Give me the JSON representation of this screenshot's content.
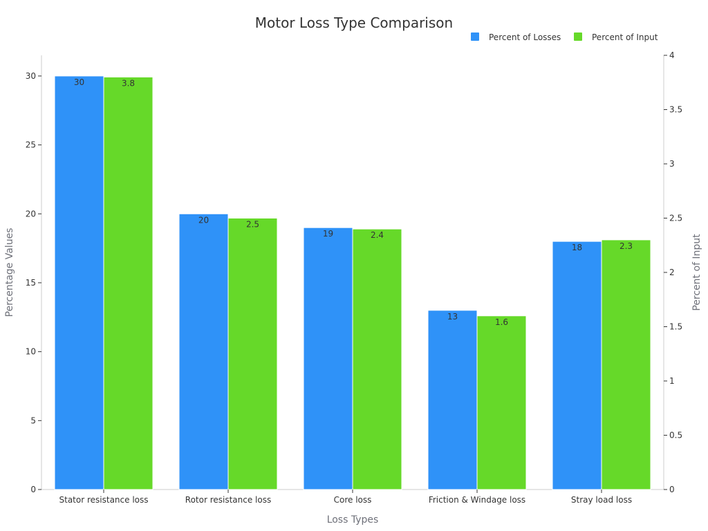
{
  "chart_data": {
    "type": "bar",
    "title": "Motor Loss Type Comparison",
    "xlabel": "Loss Types",
    "ylabel": "Percentage Values",
    "y2label": "Percent of Input",
    "categories": [
      "Stator resistance loss",
      "Rotor resistance loss",
      "Core loss",
      "Friction & Windage loss",
      "Stray load loss"
    ],
    "series": [
      {
        "name": "Percent of Losses",
        "axis": "left",
        "color": "#2f92f8",
        "values": [
          30,
          20,
          19,
          13,
          18
        ]
      },
      {
        "name": "Percent of Input",
        "axis": "right",
        "color": "#66d929",
        "values": [
          3.8,
          2.5,
          2.4,
          1.6,
          2.3
        ]
      }
    ],
    "ylim": [
      0,
      30
    ],
    "yticks": [
      "0",
      "5",
      "10",
      "15",
      "20",
      "25",
      "30"
    ],
    "y2lim": [
      0,
      4
    ],
    "y2ticks": [
      "0",
      "0.5",
      "1",
      "1.5",
      "2",
      "2.5",
      "3",
      "3.5",
      "4"
    ],
    "grid": false,
    "legend": "top-right"
  }
}
